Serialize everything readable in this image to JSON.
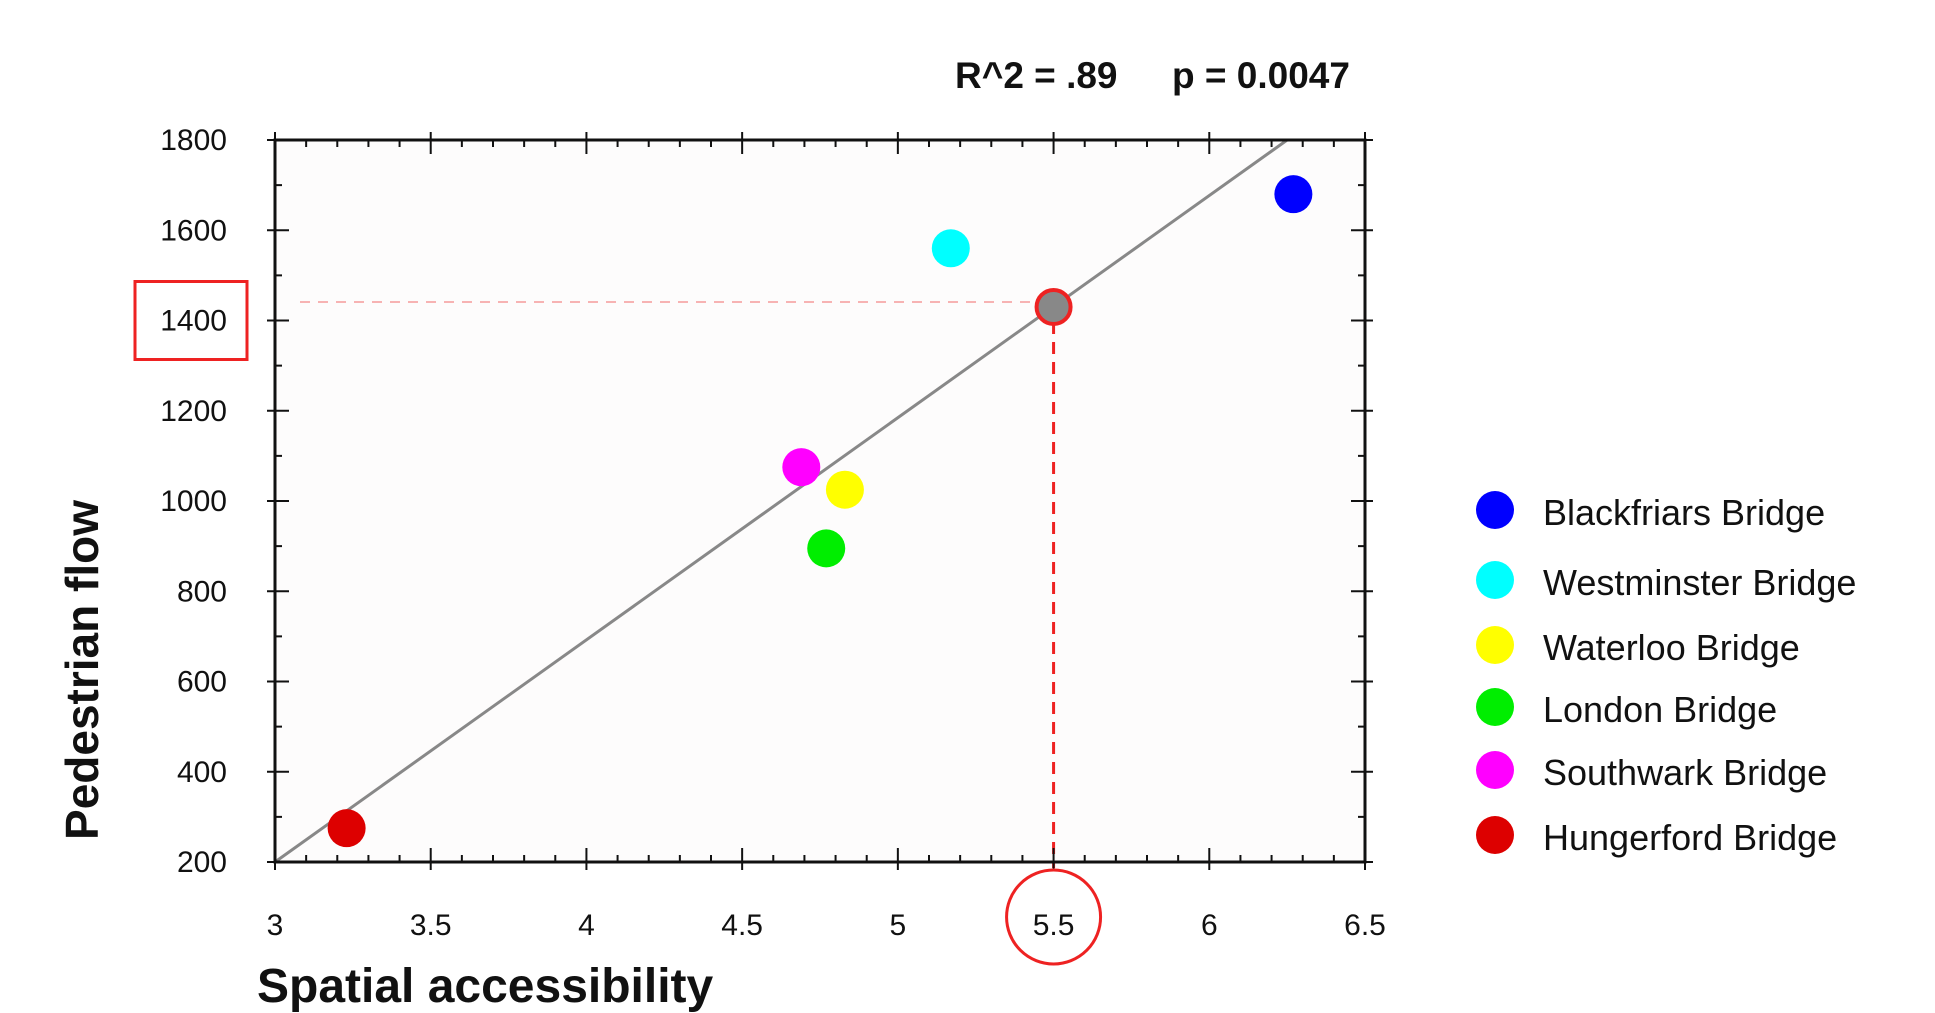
{
  "chart_data": {
    "type": "scatter",
    "title": "",
    "stats": {
      "r_squared": "R^2 = .89",
      "p_value": "p = 0.0047"
    },
    "xlabel": "Spatial accessibility",
    "ylabel": "Pedestrian flow",
    "xlim": [
      3,
      6.5
    ],
    "ylim": [
      200,
      1800
    ],
    "xticks": [
      "3",
      "3.5",
      "4",
      "4.5",
      "5",
      "5.5",
      "6",
      "6.5"
    ],
    "yticks": [
      "200",
      "400",
      "600",
      "800",
      "1000",
      "1200",
      "1400",
      "1600",
      "1800"
    ],
    "grid": false,
    "legend_position": "right",
    "series": [
      {
        "name": "Blackfriars Bridge",
        "color": "#0000ff",
        "x": 6.27,
        "y": 1680
      },
      {
        "name": "Westminster Bridge",
        "color": "#00ffff",
        "x": 5.17,
        "y": 1560
      },
      {
        "name": "Waterloo Bridge",
        "color": "#ffff00",
        "x": 4.83,
        "y": 1025
      },
      {
        "name": "London Bridge",
        "color": "#00ee00",
        "x": 4.77,
        "y": 895
      },
      {
        "name": "Southwark Bridge",
        "color": "#ff00ff",
        "x": 4.69,
        "y": 1075
      },
      {
        "name": "Hungerford Bridge",
        "color": "#dd0000",
        "x": 3.23,
        "y": 275
      }
    ],
    "fit_line": {
      "x": [
        3,
        6.25
      ],
      "y": [
        200,
        1800
      ],
      "color": "#888888"
    },
    "prediction": {
      "x": 5.5,
      "y": 1430,
      "x_label_highlight": "5.5",
      "y_label_highlight": "1400",
      "point_color": "#888888",
      "highlight_color": "#ee2222"
    }
  }
}
